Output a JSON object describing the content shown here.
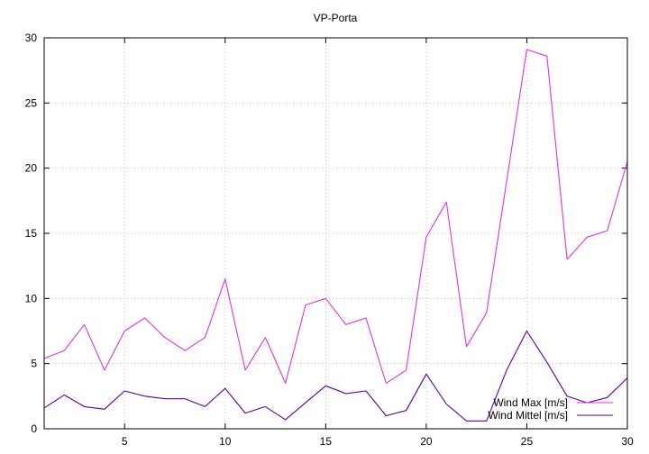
{
  "chart_data": {
    "type": "line",
    "title": "VP-Porta",
    "xlabel": "",
    "ylabel": "",
    "xlim": [
      1,
      30
    ],
    "ylim": [
      0,
      30
    ],
    "xticks": [
      5,
      10,
      15,
      20,
      25,
      30
    ],
    "yticks": [
      0,
      5,
      10,
      15,
      20,
      25,
      30
    ],
    "grid": true,
    "legend_position": "bottom-right",
    "x": [
      1,
      2,
      3,
      4,
      5,
      6,
      7,
      8,
      9,
      10,
      11,
      12,
      13,
      14,
      15,
      16,
      17,
      18,
      19,
      20,
      21,
      22,
      23,
      24,
      25,
      26,
      27,
      28,
      29,
      30
    ],
    "series": [
      {
        "name": "Wind Max [m/s]",
        "color": "#e033e0",
        "values": [
          5.4,
          6.0,
          8.0,
          4.5,
          7.5,
          8.5,
          7.0,
          6.0,
          7.0,
          11.5,
          4.5,
          7.0,
          3.5,
          9.5,
          10.0,
          8.0,
          8.5,
          3.5,
          4.5,
          14.7,
          17.4,
          6.3,
          8.9,
          19.0,
          29.1,
          28.6,
          13.0,
          14.7,
          15.2,
          20.5
        ]
      },
      {
        "name": "Wind Mittel [m/s]",
        "color": "#5a00a0",
        "values": [
          1.6,
          2.6,
          1.7,
          1.5,
          2.9,
          2.5,
          2.3,
          2.3,
          1.7,
          3.1,
          1.2,
          1.7,
          0.7,
          2.0,
          3.3,
          2.7,
          2.9,
          1.0,
          1.4,
          4.2,
          1.9,
          0.6,
          0.6,
          4.5,
          7.5,
          5.1,
          2.5,
          2.0,
          2.4,
          3.9
        ]
      }
    ]
  }
}
